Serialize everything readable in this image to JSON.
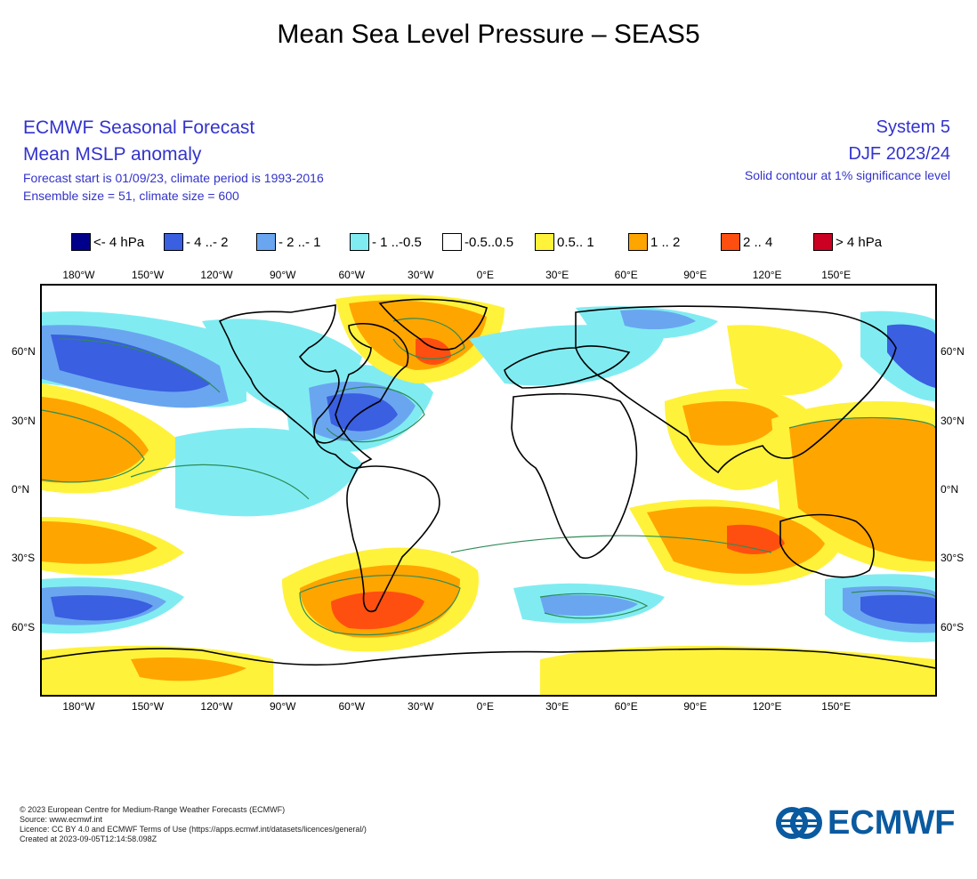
{
  "page_title": "Mean Sea Level Pressure – SEAS5",
  "header": {
    "left": [
      "ECMWF Seasonal Forecast",
      "Mean MSLP anomaly",
      "Forecast start is 01/09/23, climate period is 1993-2016",
      "Ensemble size = 51, climate size = 600"
    ],
    "right": [
      "System 5",
      "DJF 2023/24",
      "Solid contour at 1% significance level"
    ]
  },
  "legend": [
    {
      "label": "<- 4 hPa",
      "color": "#00008b"
    },
    {
      "label": "- 4 ..- 2",
      "color": "#3a5fe0"
    },
    {
      "label": "- 2 ..- 1",
      "color": "#6aa6f0"
    },
    {
      "label": "- 1 ..-0.5",
      "color": "#80ecf2"
    },
    {
      "label": "-0.5..0.5",
      "color": "#ffffff"
    },
    {
      "label": "0.5.. 1",
      "color": "#fff23a"
    },
    {
      "label": "1 .. 2",
      "color": "#ffa500"
    },
    {
      "label": "2 .. 4",
      "color": "#ff4f10"
    },
    {
      "label": "> 4 hPa",
      "color": "#cc0022"
    }
  ],
  "axes": {
    "x_ticks": [
      "180°W",
      "150°W",
      "120°W",
      "90°W",
      "60°W",
      "30°W",
      "0°E",
      "30°E",
      "60°E",
      "90°E",
      "120°E",
      "150°E"
    ],
    "x_values": [
      -180,
      -150,
      -120,
      -90,
      -60,
      -30,
      0,
      30,
      60,
      90,
      120,
      150
    ],
    "y_ticks": [
      "60°N",
      "30°N",
      "0°N",
      "30°S",
      "60°S"
    ],
    "y_values": [
      60,
      30,
      0,
      -30,
      -60
    ],
    "lon_range": [
      -196,
      194
    ],
    "lat_range": [
      -90,
      90
    ]
  },
  "footer": [
    "© 2023 European Centre for Medium-Range Weather Forecasts (ECMWF)",
    "Source: www.ecmwf.int",
    "Licence: CC BY 4.0 and ECMWF Terms of Use (https://apps.ecmwf.int/datasets/licences/general/)",
    "Created at 2023-09-05T12:14:58.098Z"
  ],
  "logo": {
    "text": "ECMWF",
    "icon": "ecmwf-logo-icon",
    "color": "#0a5aa0"
  }
}
